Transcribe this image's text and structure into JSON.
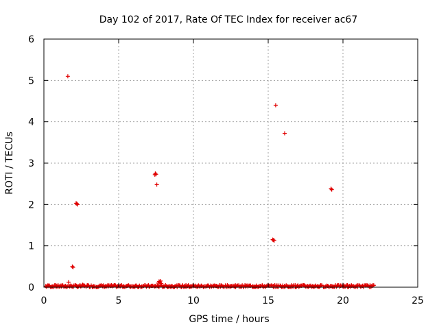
{
  "chart_data": {
    "type": "scatter",
    "title": "Day 102 of 2017, Rate Of TEC Index for receiver ac67",
    "xlabel": "GPS time / hours",
    "ylabel": "ROTI / TECUs",
    "xlim": [
      0,
      25
    ],
    "ylim": [
      0,
      6
    ],
    "x_ticks": [
      0,
      5,
      10,
      15,
      20,
      25
    ],
    "y_ticks": [
      0,
      1,
      2,
      3,
      4,
      5,
      6
    ],
    "grid": true,
    "marker": "plus",
    "color": "#e00000",
    "points": [
      [
        1.6,
        5.1
      ],
      [
        15.5,
        4.4
      ],
      [
        16.1,
        3.72
      ],
      [
        7.45,
        2.75
      ],
      [
        7.5,
        2.73
      ],
      [
        7.42,
        2.72
      ],
      [
        7.55,
        2.48
      ],
      [
        2.15,
        2.03
      ],
      [
        2.25,
        2.0
      ],
      [
        2.2,
        2.02
      ],
      [
        19.2,
        2.38
      ],
      [
        19.25,
        2.36
      ],
      [
        15.3,
        1.15
      ],
      [
        15.4,
        1.13
      ],
      [
        15.35,
        1.14
      ],
      [
        1.9,
        0.5
      ],
      [
        1.95,
        0.48
      ],
      [
        1.65,
        0.12
      ],
      [
        7.7,
        0.14
      ],
      [
        7.8,
        0.15
      ],
      [
        7.75,
        0.12
      ],
      [
        7.65,
        0.1
      ],
      [
        7.85,
        0.09
      ],
      [
        0.3,
        0.04
      ],
      [
        0.8,
        0.05
      ],
      [
        1.2,
        0.03
      ],
      [
        2.6,
        0.06
      ],
      [
        2.9,
        0.05
      ],
      [
        4.5,
        0.05
      ],
      [
        6.2,
        0.04
      ],
      [
        9.5,
        0.05
      ],
      [
        11.0,
        0.04
      ],
      [
        12.8,
        0.05
      ],
      [
        14.2,
        0.04
      ],
      [
        16.8,
        0.05
      ],
      [
        18.5,
        0.04
      ],
      [
        20.3,
        0.05
      ],
      [
        21.5,
        0.04
      ]
    ],
    "dense_band": {
      "x_range": [
        0.1,
        22.1
      ],
      "y_range": [
        0.0,
        0.05
      ],
      "count": 420
    }
  }
}
